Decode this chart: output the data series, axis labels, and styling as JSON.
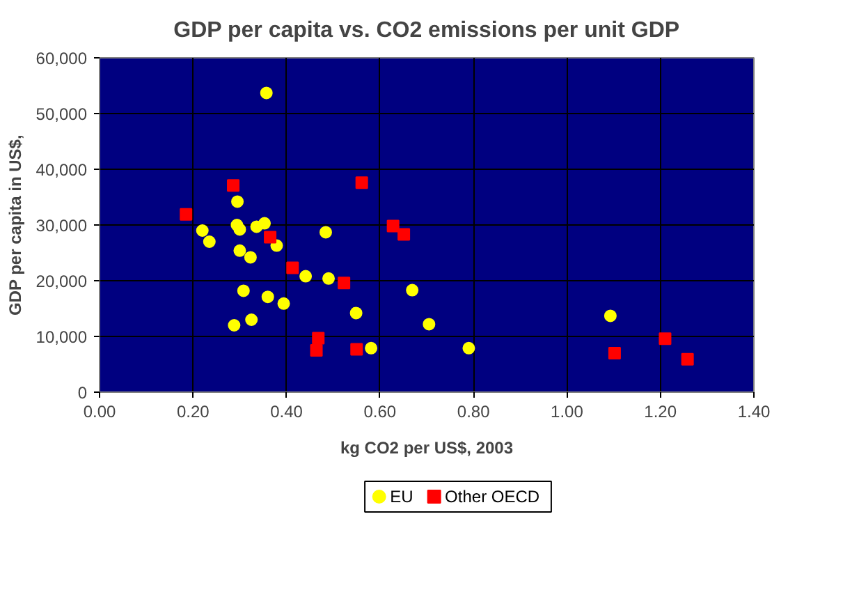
{
  "chart_data": {
    "type": "scatter",
    "title": "GDP per capita vs. CO2 emissions per unit GDP",
    "xlabel": "kg CO2 per US$, 2003",
    "ylabel": "GDP per capita in US$,",
    "series": [
      {
        "name": "EU",
        "color": "#ffff00",
        "marker": "circle",
        "x": [
          0.357,
          0.295,
          0.22,
          0.235,
          0.294,
          0.3,
          0.336,
          0.353,
          0.379,
          0.3,
          0.323,
          0.484,
          0.441,
          0.49,
          0.308,
          0.36,
          0.394,
          0.669,
          0.549,
          0.705,
          0.325,
          0.288,
          0.581,
          1.093,
          0.79
        ],
        "values": [
          53700,
          34200,
          29000,
          27000,
          30000,
          29200,
          29700,
          30300,
          26300,
          25400,
          24200,
          28700,
          20800,
          20400,
          18200,
          17100,
          15900,
          18300,
          14200,
          12200,
          13000,
          12000,
          7900,
          13700,
          7900
        ]
      },
      {
        "name": "Other OECD",
        "color": "#ff0000",
        "marker": "square",
        "x": [
          0.286,
          0.185,
          0.561,
          0.365,
          0.628,
          0.651,
          0.413,
          0.523,
          0.468,
          0.464,
          0.55,
          1.21,
          1.102,
          1.258
        ],
        "values": [
          37100,
          31900,
          37600,
          27800,
          29800,
          28300,
          22300,
          19600,
          9700,
          7500,
          7700,
          9600,
          7000,
          5900
        ]
      }
    ],
    "xlim": [
      0,
      1.4
    ],
    "xticks": [
      {
        "value": 0,
        "label": "0.00"
      },
      {
        "value": 0.2,
        "label": "0.20"
      },
      {
        "value": 0.4,
        "label": "0.40"
      },
      {
        "value": 0.6,
        "label": "0.60"
      },
      {
        "value": 0.8,
        "label": "0.80"
      },
      {
        "value": 1.0,
        "label": "1.00"
      },
      {
        "value": 1.2,
        "label": "1.20"
      },
      {
        "value": 1.4,
        "label": "1.40"
      }
    ],
    "ylim": [
      0,
      60000
    ],
    "yticks": [
      0,
      {
        "value": 10000,
        "label": "10,000"
      },
      {
        "value": 20000,
        "label": "20,000"
      },
      {
        "value": 30000,
        "label": "30,000"
      },
      {
        "value": 40000,
        "label": "40,000"
      },
      {
        "value": 50000,
        "label": "50,000"
      },
      {
        "value": 60000,
        "label": "60,000"
      }
    ],
    "grid": true,
    "legend": "bottom"
  }
}
